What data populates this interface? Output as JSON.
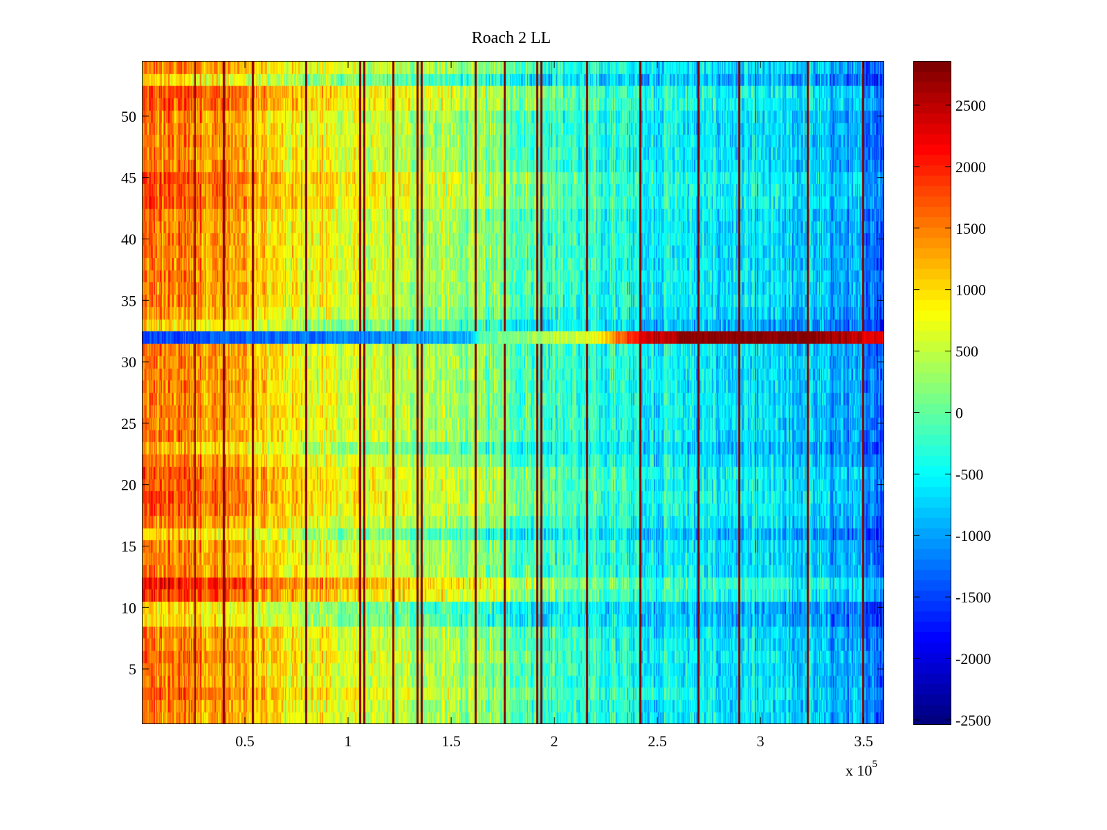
{
  "chart_data": {
    "type": "heatmap",
    "title": "Roach 2 LL",
    "xlabel": "",
    "ylabel": "",
    "x_multiplier_label": "x 10",
    "x_multiplier_exponent": "5",
    "xlim": [
      0,
      360000
    ],
    "ylim": [
      0.5,
      54.5
    ],
    "n_rows": 54,
    "n_cols": 720,
    "colormap": "jet",
    "clim": [
      -2540,
      2860
    ],
    "x_ticks": [
      {
        "value": 50000,
        "label": "0.5"
      },
      {
        "value": 100000,
        "label": "1"
      },
      {
        "value": 150000,
        "label": "1.5"
      },
      {
        "value": 200000,
        "label": "2"
      },
      {
        "value": 250000,
        "label": "2.5"
      },
      {
        "value": 300000,
        "label": "3"
      },
      {
        "value": 350000,
        "label": "3.5"
      }
    ],
    "y_ticks": [
      {
        "value": 5,
        "label": "5"
      },
      {
        "value": 10,
        "label": "10"
      },
      {
        "value": 15,
        "label": "15"
      },
      {
        "value": 20,
        "label": "20"
      },
      {
        "value": 25,
        "label": "25"
      },
      {
        "value": 30,
        "label": "30"
      },
      {
        "value": 35,
        "label": "35"
      },
      {
        "value": 40,
        "label": "40"
      },
      {
        "value": 45,
        "label": "45"
      },
      {
        "value": 50,
        "label": "50"
      }
    ],
    "colorbar_ticks": [
      {
        "value": 2500,
        "label": "2500"
      },
      {
        "value": 2000,
        "label": "2000"
      },
      {
        "value": 1500,
        "label": "1500"
      },
      {
        "value": 1000,
        "label": "1000"
      },
      {
        "value": 500,
        "label": "500"
      },
      {
        "value": 0,
        "label": "0"
      },
      {
        "value": -500,
        "label": "-500"
      },
      {
        "value": -1000,
        "label": "-1000"
      },
      {
        "value": -1500,
        "label": "-1500"
      },
      {
        "value": -2000,
        "label": "-2000"
      },
      {
        "value": -2500,
        "label": "-2500"
      }
    ],
    "value_trend": {
      "description_points_x": [
        0,
        30000,
        60000,
        100000,
        150000,
        200000,
        250000,
        300000,
        340000,
        360000
      ],
      "mean_value": [
        1500,
        1450,
        1000,
        600,
        300,
        -200,
        -500,
        -700,
        -900,
        -1300
      ]
    },
    "row_offsets": {
      "rows": [
        12,
        11,
        52,
        51,
        45,
        44,
        43,
        21,
        20,
        19,
        18,
        6,
        3,
        10,
        9,
        16,
        23,
        33,
        53,
        34
      ],
      "offset": [
        600,
        400,
        300,
        250,
        300,
        200,
        250,
        250,
        200,
        250,
        200,
        100,
        150,
        -500,
        -450,
        -450,
        -350,
        -450,
        -500,
        -150
      ]
    },
    "anomalous_row": {
      "row": 32,
      "x": [
        0,
        60000,
        100000,
        160000,
        165000,
        220000,
        240000,
        270000,
        325000,
        360000
      ],
      "value": [
        -1500,
        -1300,
        -1200,
        -900,
        0,
        700,
        2200,
        2860,
        2860,
        2200
      ]
    },
    "vertical_spike_columns_x": [
      26000,
      40000,
      54000,
      80000,
      106000,
      108000,
      122000,
      134000,
      136000,
      162000,
      176000,
      192000,
      194000,
      216000,
      242000,
      270000,
      290000,
      323000,
      350000
    ]
  }
}
